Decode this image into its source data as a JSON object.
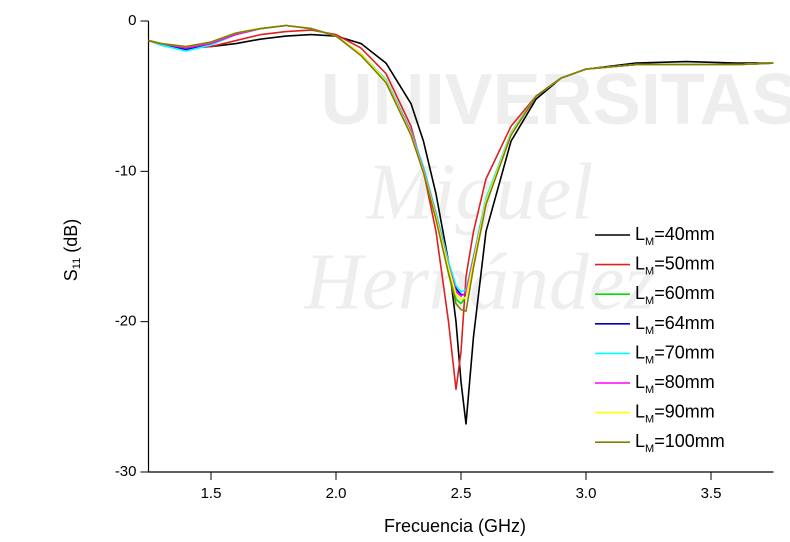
{
  "chart_data": {
    "type": "line",
    "xlabel": "Frecuencia (GHz)",
    "ylabel": "S11 (dB)",
    "watermark": [
      "UNIVERSITAS",
      "Miguel",
      "Hernández"
    ],
    "x": [
      1.25,
      1.3,
      1.4,
      1.5,
      1.6,
      1.7,
      1.8,
      1.9,
      2.0,
      2.1,
      2.2,
      2.3,
      2.35,
      2.4,
      2.45,
      2.48,
      2.5,
      2.52,
      2.55,
      2.6,
      2.7,
      2.8,
      2.9,
      3.0,
      3.2,
      3.4,
      3.6,
      3.75
    ],
    "xlim": [
      1.25,
      3.75
    ],
    "ylim": [
      -30,
      0
    ],
    "xticks": [
      1.5,
      {
        "value": 2,
        "label": "2.0"
      },
      2.5,
      {
        "value": 3,
        "label": "3.0"
      },
      3.5
    ],
    "yticks": [
      0,
      -10,
      -20,
      -30
    ],
    "legend": "right",
    "series": [
      {
        "name": "LM=40mm",
        "color": "#000000",
        "values": [
          -1.3,
          -1.5,
          -1.8,
          -1.7,
          -1.5,
          -1.2,
          -1.0,
          -0.9,
          -1.0,
          -1.5,
          -2.8,
          -5.5,
          -8,
          -11.5,
          -16,
          -20,
          -24,
          -26.8,
          -21,
          -14,
          -8,
          -5.2,
          -3.8,
          -3.2,
          -2.8,
          -2.7,
          -2.8,
          -2.8
        ]
      },
      {
        "name": "LM=50mm",
        "color": "#e02020",
        "values": [
          -1.3,
          -1.6,
          -1.8,
          -1.7,
          -1.3,
          -0.9,
          -0.7,
          -0.6,
          -0.9,
          -1.8,
          -3.5,
          -7,
          -10,
          -14,
          -20,
          -24.5,
          -22,
          -17,
          -14,
          -10.5,
          -7,
          -5,
          -3.8,
          -3.2,
          -2.9,
          -2.9,
          -2.9,
          -2.8
        ]
      },
      {
        "name": "LM=60mm",
        "color": "#00e000",
        "values": [
          -1.3,
          -1.5,
          -1.8,
          -1.4,
          -0.8,
          -0.5,
          -0.3,
          -0.5,
          -1.0,
          -2.2,
          -4.0,
          -7.5,
          -10,
          -13,
          -16.5,
          -18.5,
          -18.8,
          -18.3,
          -15.8,
          -12,
          -7.5,
          -5,
          -3.8,
          -3.2,
          -2.9,
          -2.9,
          -2.9,
          -2.8
        ]
      },
      {
        "name": "LM=64mm",
        "color": "#0000c0",
        "values": [
          -1.3,
          -1.6,
          -1.9,
          -1.5,
          -0.9,
          -0.5,
          -0.3,
          -0.5,
          -1.0,
          -2.2,
          -4.0,
          -7.4,
          -9.8,
          -12.8,
          -16.2,
          -17.8,
          -18.2,
          -18.2,
          -15.8,
          -12,
          -7.5,
          -5,
          -3.8,
          -3.2,
          -2.9,
          -2.9,
          -2.9,
          -2.8
        ]
      },
      {
        "name": "LM=70mm",
        "color": "#00ffff",
        "values": [
          -1.3,
          -1.6,
          -2.0,
          -1.6,
          -0.9,
          -0.5,
          -0.3,
          -0.5,
          -1.0,
          -2.2,
          -3.9,
          -7.3,
          -9.7,
          -12.7,
          -16,
          -17.6,
          -18.0,
          -17.9,
          -15.6,
          -11.8,
          -7.4,
          -5,
          -3.8,
          -3.2,
          -2.9,
          -2.9,
          -2.9,
          -2.8
        ]
      },
      {
        "name": "LM=80mm",
        "color": "#ff00ff",
        "values": [
          -1.3,
          -1.5,
          -1.8,
          -1.5,
          -0.9,
          -0.5,
          -0.3,
          -0.5,
          -1.0,
          -2.2,
          -4.0,
          -7.4,
          -9.9,
          -12.9,
          -16.3,
          -18.0,
          -18.3,
          -18.1,
          -15.8,
          -12,
          -7.5,
          -5,
          -3.8,
          -3.2,
          -2.9,
          -2.9,
          -2.9,
          -2.8
        ]
      },
      {
        "name": "LM=90mm",
        "color": "#ffff00",
        "values": [
          -1.3,
          -1.5,
          -1.7,
          -1.4,
          -0.8,
          -0.5,
          -0.3,
          -0.5,
          -1.0,
          -2.2,
          -4.0,
          -7.5,
          -10,
          -13,
          -16.4,
          -18.2,
          -18.5,
          -18.4,
          -16,
          -12,
          -7.5,
          -5,
          -3.8,
          -3.2,
          -2.9,
          -2.9,
          -2.9,
          -2.8
        ]
      },
      {
        "name": "LM=100mm",
        "color": "#808000",
        "values": [
          -1.3,
          -1.5,
          -1.7,
          -1.4,
          -0.8,
          -0.5,
          -0.3,
          -0.5,
          -1.0,
          -2.3,
          -4.1,
          -7.6,
          -10.1,
          -13.2,
          -16.8,
          -18.8,
          -19.2,
          -19.3,
          -16.4,
          -12.2,
          -7.6,
          -5,
          -3.8,
          -3.2,
          -2.9,
          -2.9,
          -2.9,
          -2.8
        ]
      }
    ]
  }
}
